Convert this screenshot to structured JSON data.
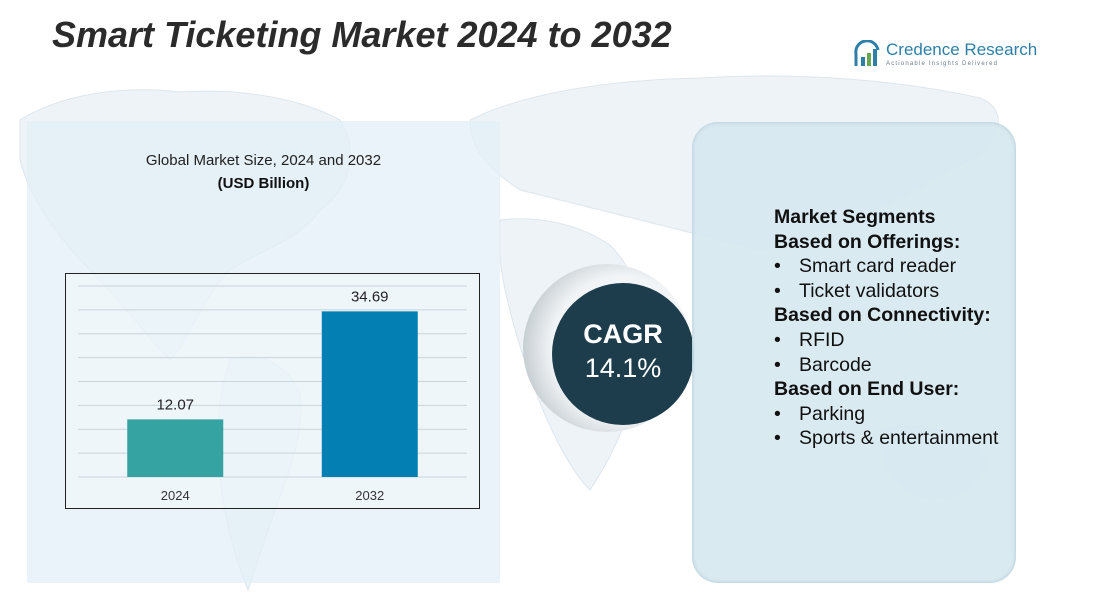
{
  "header": {
    "title": "Smart Ticketing Market 2024 to 2032",
    "brand_name": "Credence Research",
    "brand_tagline": "Actionable Insights Delivered"
  },
  "chart_data": {
    "type": "bar",
    "title": "Global Market Size, 2024 and 2032",
    "unit_label": "(USD Billion)",
    "categories": [
      "2024",
      "2032"
    ],
    "values": [
      12.07,
      34.69
    ],
    "value_labels": [
      "12.07",
      "34.69"
    ],
    "colors": [
      "#36a3a3",
      "#047fb3"
    ],
    "ylim": [
      0,
      40
    ],
    "grid": true,
    "xlabel": "",
    "ylabel": ""
  },
  "cagr": {
    "label": "CAGR",
    "value": "14.1%"
  },
  "segments": {
    "heading": "Market Segments",
    "groups": [
      {
        "title": "Based on Offerings:",
        "items": [
          "Smart card reader",
          "Ticket validators"
        ]
      },
      {
        "title": "Based on Connectivity:",
        "items": [
          "RFID",
          "Barcode"
        ]
      },
      {
        "title": "Based on End User:",
        "items": [
          "Parking",
          "Sports & entertainment"
        ]
      }
    ],
    "bullet": "•"
  },
  "colors": {
    "title": "#2b2b2b",
    "brand": "#2e7fa8",
    "cagr_bg": "#1d3d4c",
    "panel_bg": "#d7e8f0"
  }
}
